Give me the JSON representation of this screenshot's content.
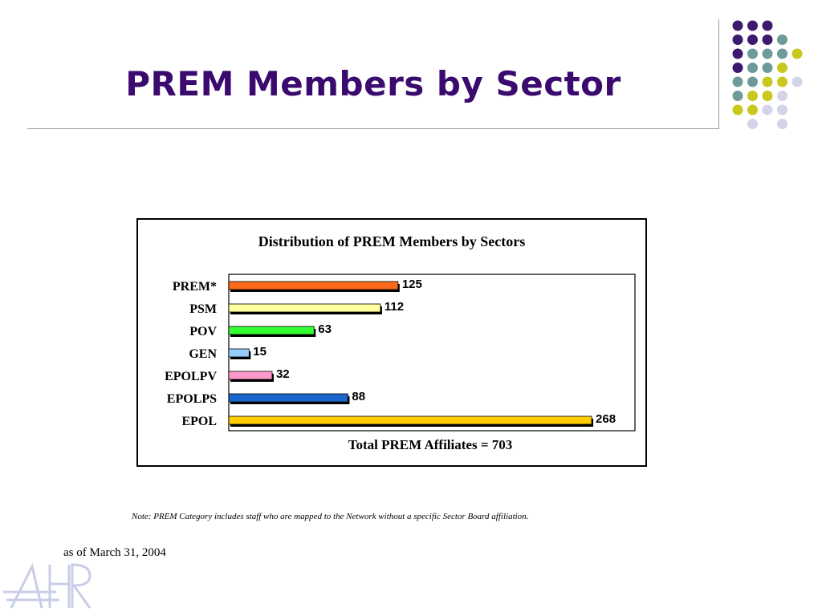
{
  "slide": {
    "title": "PREM Members by Sector",
    "note": "Note: PREM Category includes staff who are mapped to the Network without a specific Sector Board affiliation.",
    "as_of": "as of March 31, 2004"
  },
  "decoration": {
    "dot_colors": {
      "purple": "#3d1a6e",
      "teal": "#6e9a9a",
      "olive": "#c8c81e",
      "lavender": "#d4d4e8"
    },
    "watermark_logo": "HR"
  },
  "chart_data": {
    "type": "bar",
    "orientation": "horizontal",
    "title": "Distribution of PREM Members by Sectors",
    "xlabel": "Total PREM Affiliates = 703",
    "ylabel": "",
    "categories": [
      "PREM*",
      "PSM",
      "POV",
      "GEN",
      "EPOLPV",
      "EPOLPS",
      "EPOL"
    ],
    "values": [
      125,
      112,
      63,
      15,
      32,
      88,
      268
    ],
    "colors": [
      "#ff6a1a",
      "#ffffa0",
      "#33ff33",
      "#99ccff",
      "#ff99cc",
      "#1a66cc",
      "#ffcc00"
    ],
    "xlim": [
      0,
      300
    ],
    "grid": false,
    "legend": "none",
    "data_labels": true
  }
}
